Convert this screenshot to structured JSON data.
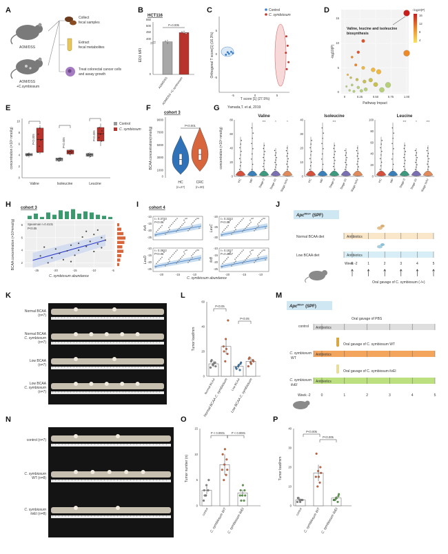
{
  "panels": {
    "A": {
      "label": "A",
      "groups": [
        "AOM/DSS",
        "AOM/DSS",
        "+C.symbiosum"
      ],
      "steps": [
        "Collect",
        "fecal samples",
        "Extract",
        "fecal metabolites",
        "Treat colorectal cancer cells",
        "and assay growth"
      ]
    },
    "B": {
      "label": "B",
      "title": "HCT116",
      "ylabel": "EDU MFI",
      "pval": "P=0.005"
    },
    "C": {
      "label": "C",
      "xlabel": "T score [1] (27.5%)",
      "ylabel": "Orthogonal T score[1] (16.3%)",
      "legend": [
        "Control",
        "C. symbiosum"
      ]
    },
    "D": {
      "label": "D",
      "xlabel": "Pathway Impact",
      "ylabel": "-log10(P)",
      "legend_title": "−log10(P)",
      "annotation": [
        "Valine, leucine and isoleucine",
        "biosynthesis"
      ]
    },
    "E": {
      "label": "E",
      "ylabel": "concentration (×10³ nmol/g)",
      "legend": [
        "Control",
        "C. symbiosum"
      ]
    },
    "F": {
      "label": "F",
      "title": "cohort 3",
      "ylabel": "BCAA concentration(nmol/g)",
      "pval": "P<0.001",
      "groups": [
        "HC",
        "CRC"
      ],
      "ns": [
        "(n=27)",
        "(n=30)"
      ]
    },
    "G": {
      "label": "G",
      "citation": "Yamada,T. et al, 2019",
      "ylabel": "concentration (×10³ nmol/g)"
    },
    "H": {
      "label": "H",
      "title": "cohort 3",
      "stats": [
        "Spearman r=0.4131",
        "P<0.05"
      ],
      "xlabel": "C. symbiosum abundance",
      "ylabel": "BCAA concentration (×10³nmol/g)"
    },
    "I": {
      "label": "I",
      "title": "cohort 4",
      "xlabel": "C. symbiosum  abundance"
    },
    "J": {
      "label": "J",
      "model": "Apc",
      "sup": "Min/+",
      "cond": "(SPF)",
      "diets": [
        "Normal BCAA diet",
        "Low BCAA diet"
      ],
      "antibiotics": "Antibiotics",
      "week_label": "Week -2",
      "gavage": "Oral gavage of C. symbiosum (-/+)"
    },
    "K": {
      "label": "K"
    },
    "L": {
      "label": "L",
      "ylabel": "Tumor load/mm",
      "pvals": [
        "P<0.05",
        "P<0.05"
      ]
    },
    "M": {
      "label": "M",
      "model": "Apc",
      "sup": "Min/+",
      "cond": "(SPF)",
      "rows": [
        "control",
        "C. symbiosum",
        "WT",
        "C. symbiosum",
        "ilvEI"
      ],
      "antibiotics": "Antibiotics",
      "gavage": [
        "Oral gavage of PBS",
        "Oral gavage of C. symbiosum WT",
        "Oral gavage of C. symbiosum ilvEI"
      ],
      "week_label": "Week -2"
    },
    "N": {
      "label": "N"
    },
    "O": {
      "label": "O",
      "ylabel": "Tumor number (n)",
      "pvals": [
        "P < 0.0001",
        "P < 0.0001"
      ]
    },
    "P": {
      "label": "P",
      "ylabel": "Tumor load/mm",
      "pvals": [
        "P<0.005",
        "P<0.005"
      ]
    }
  },
  "chart_data": [
    {
      "id": "B",
      "type": "bar",
      "title": "HCT116",
      "ylabel": "EDU MFI",
      "categories": [
        "AOM/DSS",
        "AOM/DSS +C.symbiosum"
      ],
      "values": [
        400,
        480
      ],
      "yticks": [
        "0",
        "400",
        "450",
        "500",
        "550"
      ],
      "colors": [
        "#a8a8a8",
        "#b8332b"
      ]
    },
    {
      "id": "C",
      "type": "scatter",
      "xticks": [
        "-5",
        "0",
        "5"
      ],
      "yticks": [
        "-5",
        "0",
        "5"
      ],
      "series": [
        {
          "name": "Control",
          "color": "#3b7fc4",
          "points": [
            [
              -6.2,
              0.6
            ],
            [
              -5.9,
              0.3
            ],
            [
              -5.4,
              0.7
            ],
            [
              -6.6,
              0.1
            ],
            [
              -5.0,
              0.4
            ]
          ]
        },
        {
          "name": "C. symbiosum",
          "color": "#c0392b",
          "points": [
            [
              7.1,
              4.0
            ],
            [
              7.4,
              2.0
            ],
            [
              7.0,
              0.5
            ],
            [
              7.6,
              -1.5
            ],
            [
              7.2,
              -3.0
            ]
          ]
        }
      ]
    },
    {
      "id": "D",
      "type": "scatter",
      "xticks": [
        "0",
        "0.25",
        "0.50",
        "0.75",
        "1.00"
      ],
      "yticks": [
        "0",
        "5",
        "10",
        "15"
      ],
      "legend_ticks": [
        "16",
        "12",
        "8",
        "4"
      ],
      "points": [
        [
          1.0,
          16.2
        ],
        [
          1.0,
          8.0
        ],
        [
          0.3,
          10.5
        ],
        [
          0.22,
          8.2
        ],
        [
          0.12,
          7.2
        ],
        [
          0.18,
          5.6
        ],
        [
          0.3,
          5.0
        ],
        [
          0.46,
          4.6
        ],
        [
          0.55,
          4.2
        ],
        [
          0.05,
          3.6
        ],
        [
          0.1,
          3.0
        ],
        [
          0.2,
          2.6
        ],
        [
          0.32,
          2.2
        ],
        [
          0.42,
          2.5
        ],
        [
          0.5,
          1.6
        ],
        [
          0.7,
          1.5
        ],
        [
          0.03,
          1.2
        ],
        [
          0.12,
          1.5
        ],
        [
          0.22,
          1.0
        ],
        [
          0.34,
          0.6
        ],
        [
          0.08,
          0.4
        ],
        [
          0.6,
          0.5
        ],
        [
          0.15,
          0.2
        ],
        [
          0.27,
          0.3
        ]
      ]
    },
    {
      "id": "E",
      "type": "box",
      "categories": [
        "Valine",
        "Isoleucine",
        "Leucine"
      ],
      "yticks": [
        "0",
        "2",
        "4",
        "6",
        "8",
        "10"
      ],
      "pvals": [
        "P<0.005",
        "P<0.005",
        "P<0.005"
      ],
      "series": [
        {
          "name": "Control",
          "color": "#999999",
          "boxes": [
            [
              3.6,
              3.9,
              4.1,
              4.3,
              4.5
            ],
            [
              2.8,
              3.0,
              3.3,
              3.5,
              3.7
            ],
            [
              3.5,
              3.8,
              4.1,
              4.3,
              4.5
            ]
          ]
        },
        {
          "name": "C. symbiosum",
          "color": "#b8332b",
          "boxes": [
            [
              4.2,
              4.5,
              6.8,
              8.8,
              9.3
            ],
            [
              3.9,
              4.2,
              4.6,
              4.9,
              5.1
            ],
            [
              5.6,
              6.5,
              7.8,
              8.9,
              9.6
            ]
          ]
        }
      ]
    },
    {
      "id": "F",
      "type": "violin",
      "categories": [
        "HC",
        "CRC"
      ],
      "yticks": [
        "0",
        "1000",
        "3000",
        "5000",
        "7000",
        "9000"
      ],
      "series": [
        {
          "name": "HC",
          "color": "#2f72b7",
          "median": 2700,
          "min": 300,
          "max": 6500
        },
        {
          "name": "CRC",
          "color": "#d8663d",
          "median": 3500,
          "min": 800,
          "max": 7800
        }
      ]
    },
    {
      "id": "G",
      "type": "violin",
      "panels": [
        {
          "title": "Valine",
          "yticks": [
            "0",
            "20",
            "40",
            "60",
            "80"
          ],
          "ymax": 80,
          "categories": [
            "HC",
            "MP",
            "Stage 0",
            "Stage I/II",
            "Stage III/IV"
          ],
          "stars": [
            "",
            "",
            "***",
            "*",
            "*"
          ]
        },
        {
          "title": "Isoleucine",
          "yticks": [
            "0",
            "10",
            "20",
            "30",
            "40"
          ],
          "ymax": 40,
          "categories": [
            "HC",
            "MP",
            "Stage 0",
            "Stage I/II",
            "Stage III/IV"
          ],
          "stars": [
            "",
            "",
            "***",
            "",
            ""
          ]
        },
        {
          "title": "Leucine",
          "yticks": [
            "0",
            "20",
            "40",
            "60",
            "80",
            "100"
          ],
          "ymax": 100,
          "categories": [
            "HC",
            "MP",
            "Stage 0",
            "Stage I/II",
            "Stage III/IV"
          ],
          "stars": [
            "",
            "",
            "***",
            "*",
            "***"
          ]
        }
      ],
      "colors": [
        "#d4503d",
        "#3a7fb8",
        "#3e9a7f",
        "#7a6fb0",
        "#e08a5b"
      ]
    },
    {
      "id": "H",
      "type": "scatter",
      "xticks": [
        "-25",
        "-20",
        "-15",
        "-10",
        "-5"
      ],
      "yticks": [
        "2",
        "4",
        "6",
        "8"
      ],
      "fit": [
        [
          -26,
          2.4
        ],
        [
          -7,
          5.6
        ]
      ],
      "points": [
        [
          -24,
          3.1
        ],
        [
          -22,
          2.0
        ],
        [
          -21,
          2.8
        ],
        [
          -20,
          4.2
        ],
        [
          -19,
          3.5
        ],
        [
          -18,
          2.5
        ],
        [
          -17,
          3.9
        ],
        [
          -16,
          4.8
        ],
        [
          -15,
          3.2
        ],
        [
          -14,
          5.1
        ],
        [
          -14,
          4.0
        ],
        [
          -13,
          6.1
        ],
        [
          -12,
          4.6
        ],
        [
          -11,
          5.4
        ],
        [
          -10,
          3.8
        ],
        [
          -10,
          6.5
        ],
        [
          -9,
          5.0
        ],
        [
          -9,
          7.2
        ],
        [
          -8,
          4.4
        ],
        [
          -8,
          6.0
        ],
        [
          -7,
          5.6
        ],
        [
          -12,
          7.0
        ],
        [
          -16,
          2.2
        ],
        [
          -23,
          4.5
        ]
      ]
    },
    {
      "id": "I",
      "type": "scatter",
      "xticks": [
        "-20",
        "-15",
        "-10"
      ],
      "panels": [
        {
          "ylabel": "ilvA",
          "stats": [
            "r= 0.3733",
            "P<0.01"
          ],
          "yticks": [
            "-10",
            "-15",
            "-20",
            "-25"
          ]
        },
        {
          "ylabel": "LeuC",
          "stats": [
            "r= 0.3222",
            "P<0.05"
          ],
          "yticks": [
            "-20",
            "-25",
            "-30"
          ]
        },
        {
          "ylabel": "LeuD",
          "stats": [
            "r= 0.3622",
            "P<0.01"
          ],
          "yticks": [
            "-10",
            "-15",
            "-20",
            "-25"
          ]
        },
        {
          "ylabel": "ilvB",
          "stats": [
            "r= 0.1817",
            "P=0.2067"
          ],
          "yticks": [
            "-10",
            "-15",
            "-20",
            "-25"
          ]
        }
      ]
    },
    {
      "id": "J",
      "type": "timeline",
      "weeks": [
        "-2",
        "0",
        "1",
        "2",
        "3",
        "4",
        "5"
      ]
    },
    {
      "id": "K",
      "type": "image-rows",
      "rows": [
        [
          "Normal BCAA",
          "(n=7)"
        ],
        [
          "Normal BCAA",
          "C. symbiosum",
          "(n=7)"
        ],
        [
          "Low BCAA",
          "(n=7)"
        ],
        [
          "Low BCAA",
          "C. symbiosum",
          "(n=7)"
        ]
      ]
    },
    {
      "id": "L",
      "type": "dot-bar",
      "yticks": [
        "0",
        "20",
        "40",
        "60"
      ],
      "categories": [
        "Normal BCAA",
        "Normal BCAA C. symbiosum",
        "Low BCAA",
        "Low BCAA C. symbiosum"
      ],
      "means": [
        10,
        24,
        8,
        12
      ],
      "colors": [
        "#8a8a8a",
        "#d8663d",
        "#3a7fb8",
        "#d8663d"
      ],
      "points": [
        [
          7,
          9,
          11,
          12,
          10,
          8,
          13
        ],
        [
          12,
          18,
          24,
          30,
          45,
          20,
          22
        ],
        [
          5,
          7,
          8,
          10,
          6,
          9,
          11
        ],
        [
          8,
          11,
          13,
          14,
          10,
          12,
          15
        ]
      ]
    },
    {
      "id": "M",
      "type": "timeline",
      "weeks": [
        "-2",
        "0",
        "1",
        "2",
        "3",
        "4",
        "5"
      ]
    },
    {
      "id": "N",
      "type": "image-rows",
      "rows": [
        [
          "control (n=7)"
        ],
        [
          "C. symbiosum",
          "WT (n=8)"
        ],
        [
          "C. symbiosum",
          "ilvEI (n=8)"
        ]
      ]
    },
    {
      "id": "O",
      "type": "dot-bar",
      "yticks": [
        "0",
        "5",
        "10",
        "15"
      ],
      "categories": [
        "control",
        "C. symbiosum WT",
        "C. symbiosum ilvEI"
      ],
      "means": [
        3,
        8,
        2.5
      ],
      "colors": [
        "#8a8a8a",
        "#d8663d",
        "#5aa648"
      ],
      "points": [
        [
          1,
          2,
          3,
          3,
          4,
          5,
          2
        ],
        [
          5,
          6,
          7,
          8,
          9,
          10,
          11,
          7
        ],
        [
          1,
          2,
          2,
          3,
          3,
          4,
          2,
          1
        ]
      ]
    },
    {
      "id": "P",
      "type": "dot-bar",
      "yticks": [
        "0",
        "10",
        "20",
        "30",
        "40"
      ],
      "categories": [
        "control",
        "C. symbiosum WT",
        "C. symbiosum ilvEI"
      ],
      "means": [
        3,
        17,
        4
      ],
      "colors": [
        "#8a8a8a",
        "#d8663d",
        "#5aa648"
      ],
      "points": [
        [
          2,
          3,
          3,
          4,
          2,
          3,
          4
        ],
        [
          10,
          12,
          15,
          18,
          20,
          27,
          15,
          17
        ],
        [
          2,
          3,
          4,
          5,
          3,
          4,
          6,
          3
        ]
      ]
    }
  ]
}
